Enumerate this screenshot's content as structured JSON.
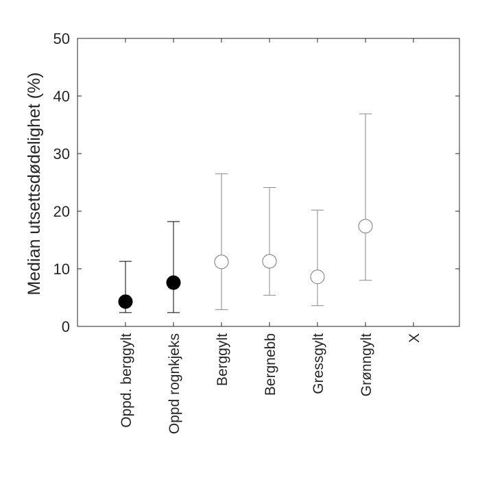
{
  "chart_data": {
    "type": "scatter",
    "subtype": "point-with-error-bars",
    "title": "",
    "xlabel": "",
    "ylabel": "Median utsettsdødelighet (%)",
    "ylim": [
      0,
      50
    ],
    "yticks": [
      0,
      10,
      20,
      30,
      40,
      50
    ],
    "grid": false,
    "categories": [
      "Oppd. berggylt",
      "Oppd rognkjeks",
      "Berggylt",
      "Bergnebb",
      "Gressgylt",
      "Grønngylt",
      "X"
    ],
    "points": [
      {
        "category": "Oppd. berggylt",
        "median": 4.3,
        "lower": 2.4,
        "upper": 11.3,
        "style": "filled"
      },
      {
        "category": "Oppd rognkjeks",
        "median": 7.6,
        "lower": 2.4,
        "upper": 18.2,
        "style": "filled"
      },
      {
        "category": "Berggylt",
        "median": 11.2,
        "lower": 2.9,
        "upper": 26.5,
        "style": "open"
      },
      {
        "category": "Bergnebb",
        "median": 11.3,
        "lower": 5.4,
        "upper": 24.1,
        "style": "open"
      },
      {
        "category": "Gressgylt",
        "median": 8.6,
        "lower": 3.6,
        "upper": 20.2,
        "style": "open"
      },
      {
        "category": "Grønngylt",
        "median": 17.4,
        "lower": 8.0,
        "upper": 36.9,
        "style": "open"
      }
    ],
    "colors": {
      "filled_marker": "#000000",
      "filled_errorbar": "#000000",
      "open_marker_stroke": "#777777",
      "open_errorbar": "#888888",
      "axis": "#262626"
    }
  }
}
